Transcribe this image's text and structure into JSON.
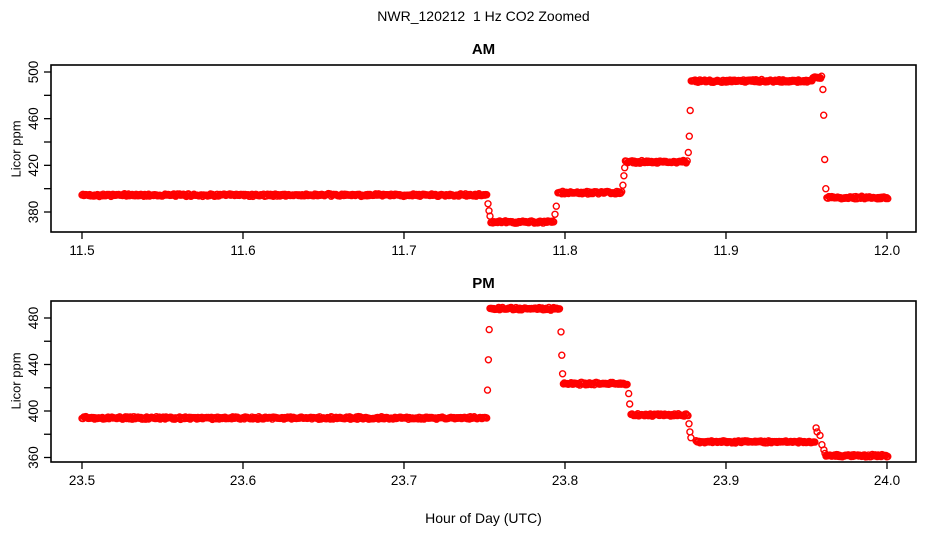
{
  "header": {
    "title": "NWR_120212  1 Hz CO2 Zoomed"
  },
  "style": {
    "point_color": "#FF0000",
    "axis_color": "#000000",
    "background": "#FFFFFF"
  },
  "sampling": {
    "dt_hours": 0.0006,
    "noise_ppm": 1.3
  },
  "chart_data": [
    {
      "type": "scatter",
      "title": "AM",
      "ylabel": "Licor ppm",
      "xlabel": "",
      "marker": "open-circle",
      "grid": false,
      "xlim": [
        11.48075,
        12.01802
      ],
      "ylim": [
        362.86,
        506.0
      ],
      "x_ticks": [
        {
          "v": 11.5,
          "label": "11.5"
        },
        {
          "v": 11.6,
          "label": "11.6"
        },
        {
          "v": 11.7,
          "label": "11.7"
        },
        {
          "v": 11.8,
          "label": "11.8"
        },
        {
          "v": 11.9,
          "label": "11.9"
        },
        {
          "v": 12.0,
          "label": "12.0"
        }
      ],
      "y_ticks": [
        {
          "v": 380,
          "label": "380"
        },
        {
          "v": 400,
          "label": ""
        },
        {
          "v": 420,
          "label": "420"
        },
        {
          "v": 440,
          "label": ""
        },
        {
          "v": 460,
          "label": "460"
        },
        {
          "v": 480,
          "label": ""
        },
        {
          "v": 500,
          "label": "500"
        }
      ],
      "segments": [
        {
          "t0": 11.5,
          "t1": 11.7516,
          "v": 394.5
        },
        {
          "t0": 11.754,
          "t1": 11.7932,
          "v": 371.4
        },
        {
          "t0": 11.7956,
          "t1": 11.8354,
          "v": 396.5
        },
        {
          "t0": 11.8375,
          "t1": 11.876,
          "v": 423.0
        },
        {
          "t0": 11.8784,
          "t1": 11.954,
          "v": 492.3
        },
        {
          "t0": 11.954,
          "t1": 11.9596,
          "v": 495.3
        },
        {
          "t0": 11.9627,
          "t1": 12.001,
          "v": 392.3
        }
      ],
      "extra_points": [
        {
          "t": 11.7522,
          "v": 387.0
        },
        {
          "t": 11.7528,
          "v": 381.0
        },
        {
          "t": 11.7534,
          "v": 376.5
        },
        {
          "t": 11.7938,
          "v": 378.0
        },
        {
          "t": 11.7946,
          "v": 385.0
        },
        {
          "t": 11.836,
          "v": 403.0
        },
        {
          "t": 11.8366,
          "v": 411.0
        },
        {
          "t": 11.8371,
          "v": 418.0
        },
        {
          "t": 11.8766,
          "v": 431.0
        },
        {
          "t": 11.8772,
          "v": 445.0
        },
        {
          "t": 11.8778,
          "v": 467.0
        },
        {
          "t": 11.9602,
          "v": 485.0
        },
        {
          "t": 11.9607,
          "v": 463.0
        },
        {
          "t": 11.9613,
          "v": 425.0
        },
        {
          "t": 11.962,
          "v": 400.0
        }
      ]
    },
    {
      "type": "scatter",
      "title": "PM",
      "ylabel": "Licor ppm",
      "xlabel": "Hour of Day (UTC)",
      "marker": "open-circle",
      "grid": false,
      "xlim": [
        23.48075,
        24.01802
      ],
      "ylim": [
        356.13,
        494.62
      ],
      "x_ticks": [
        {
          "v": 23.5,
          "label": "23.5"
        },
        {
          "v": 23.6,
          "label": "23.6"
        },
        {
          "v": 23.7,
          "label": "23.7"
        },
        {
          "v": 23.8,
          "label": "23.8"
        },
        {
          "v": 23.9,
          "label": "23.9"
        },
        {
          "v": 24.0,
          "label": "24.0"
        }
      ],
      "y_ticks": [
        {
          "v": 360,
          "label": "360"
        },
        {
          "v": 380,
          "label": ""
        },
        {
          "v": 400,
          "label": "400"
        },
        {
          "v": 420,
          "label": ""
        },
        {
          "v": 440,
          "label": "440"
        },
        {
          "v": 460,
          "label": ""
        },
        {
          "v": 480,
          "label": "480"
        }
      ],
      "segments": [
        {
          "t0": 23.5,
          "t1": 23.7516,
          "v": 394.0
        },
        {
          "t0": 23.7534,
          "t1": 23.7969,
          "v": 488.0
        },
        {
          "t0": 23.799,
          "t1": 23.8391,
          "v": 423.5
        },
        {
          "t0": 23.841,
          "t1": 23.8764,
          "v": 396.5
        },
        {
          "t0": 23.8814,
          "t1": 23.9553,
          "v": 373.5
        },
        {
          "t0": 23.9621,
          "t1": 24.0005,
          "v": 361.5
        }
      ],
      "extra_points": [
        {
          "t": 23.7519,
          "v": 418.0
        },
        {
          "t": 23.7524,
          "v": 444.0
        },
        {
          "t": 23.7529,
          "v": 470.0
        },
        {
          "t": 23.7975,
          "v": 468.0
        },
        {
          "t": 23.798,
          "v": 448.0
        },
        {
          "t": 23.7985,
          "v": 432.0
        },
        {
          "t": 23.8396,
          "v": 415.0
        },
        {
          "t": 23.8402,
          "v": 406.0
        },
        {
          "t": 23.877,
          "v": 389.0
        },
        {
          "t": 23.8776,
          "v": 382.0
        },
        {
          "t": 23.8782,
          "v": 377.0
        },
        {
          "t": 23.956,
          "v": 385.5
        },
        {
          "t": 23.9566,
          "v": 382.0
        },
        {
          "t": 23.9584,
          "v": 379.0
        },
        {
          "t": 23.9596,
          "v": 371.0
        },
        {
          "t": 23.9608,
          "v": 366.5
        },
        {
          "t": 23.9615,
          "v": 363.5
        }
      ]
    }
  ],
  "footer": {
    "xlabel": "Hour of Day (UTC)"
  }
}
